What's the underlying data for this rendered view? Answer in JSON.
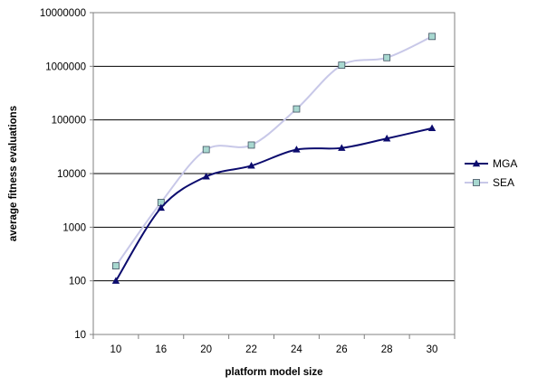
{
  "chart_data": {
    "type": "line",
    "xlabel": "platform model size",
    "ylabel": "average fitness evaluations",
    "categories": [
      "10",
      "16",
      "20",
      "22",
      "24",
      "26",
      "28",
      "30"
    ],
    "y_scale": "log",
    "ylim": [
      10,
      10000000
    ],
    "y_ticks": [
      10,
      100,
      1000,
      10000,
      100000,
      1000000,
      10000000
    ],
    "y_tick_labels": [
      "10",
      "100",
      "1000",
      "10000",
      "100000",
      "1000000",
      "10000000"
    ],
    "grid": "horizontal",
    "legend_position": "right",
    "series": [
      {
        "name": "MGA",
        "marker": "triangle",
        "color": "#0c0c6e",
        "values": [
          100,
          2300,
          8800,
          14000,
          28000,
          30000,
          45000,
          70000
        ]
      },
      {
        "name": "SEA",
        "marker": "square",
        "color": "#c8c8e8",
        "marker_fill": "#a8d8d0",
        "values": [
          190,
          2900,
          28000,
          34000,
          160000,
          1050000,
          1450000,
          3600000
        ]
      }
    ]
  }
}
